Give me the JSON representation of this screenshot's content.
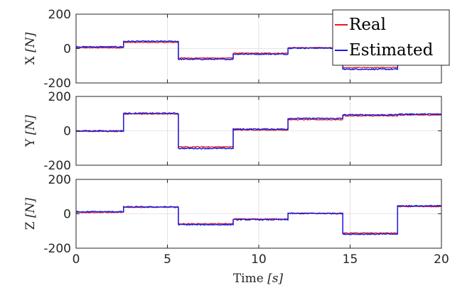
{
  "chart_data": {
    "type": "line",
    "xlim": [
      0,
      20
    ],
    "x_ticks": [
      "0",
      "5",
      "10",
      "15",
      "20"
    ],
    "x_tick_values": [
      0,
      5,
      10,
      15,
      20
    ],
    "xlabel": {
      "main": "Time ",
      "unit": "[s]"
    },
    "grid": true,
    "legend": {
      "placement": "top-right",
      "entries": [
        "Real",
        "Estimated"
      ]
    },
    "colors": {
      "Real": "#e41a1c",
      "Estimated": "#1a1adf"
    },
    "segment_boundaries": [
      0,
      2.6,
      5.6,
      8.6,
      11.6,
      14.6,
      17.6,
      20
    ],
    "subplots": [
      {
        "ylabel": {
          "main": "X ",
          "unit": "[N]"
        },
        "ylim": [
          -200,
          200
        ],
        "y_ticks": [
          "200",
          "0",
          "-200"
        ],
        "y_tick_values": [
          200,
          0,
          -200
        ],
        "series": [
          {
            "name": "Real",
            "levels": [
              5,
              36,
              -55,
              -27,
              5,
              -110,
              0
            ]
          },
          {
            "name": "Estimated",
            "levels": [
              10,
              42,
              -62,
              -32,
              3,
              -120,
              0
            ]
          }
        ]
      },
      {
        "ylabel": {
          "main": "Y ",
          "unit": "[N]"
        },
        "ylim": [
          -200,
          200
        ],
        "y_ticks": [
          "200",
          "0",
          "-200"
        ],
        "y_tick_values": [
          200,
          0,
          -200
        ],
        "series": [
          {
            "name": "Real",
            "levels": [
              -3,
              98,
              -93,
              5,
              65,
              87,
              92
            ]
          },
          {
            "name": "Estimated",
            "levels": [
              0,
              102,
              -102,
              10,
              72,
              93,
              97
            ]
          }
        ]
      },
      {
        "ylabel": {
          "main": "Z ",
          "unit": "[N]"
        },
        "ylim": [
          -200,
          200
        ],
        "y_ticks": [
          "200",
          "0",
          "-200"
        ],
        "y_tick_values": [
          200,
          0,
          -200
        ],
        "series": [
          {
            "name": "Real",
            "levels": [
              8,
              38,
              -58,
              -30,
              3,
              -112,
              42
            ]
          },
          {
            "name": "Estimated",
            "levels": [
              12,
              40,
              -63,
              -34,
              2,
              -118,
              46
            ]
          }
        ]
      }
    ]
  }
}
